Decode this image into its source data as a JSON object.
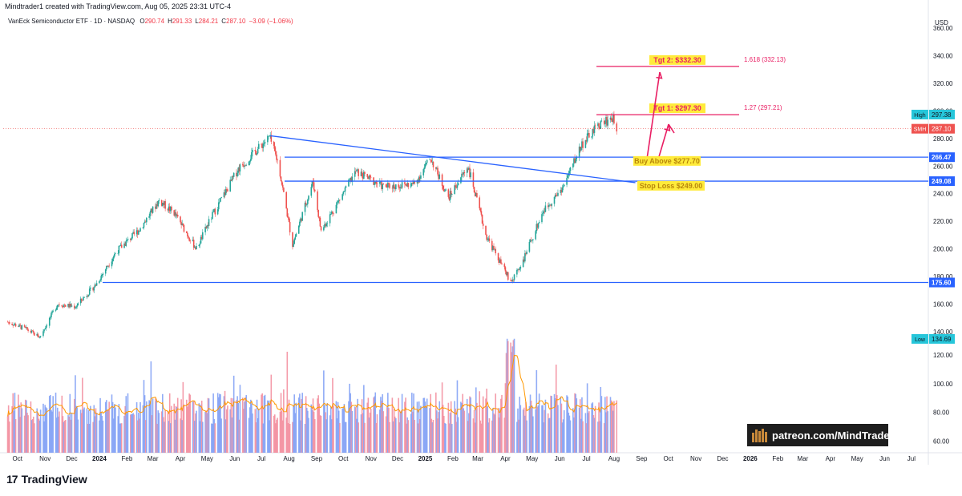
{
  "header": {
    "attribution": "Mindtrader1 created with TradingView.com, Aug 05, 2025 23:31 UTC-4",
    "instrument": "VanEck Semiconductor ETF · 1D · NASDAQ",
    "ohlc": [
      {
        "label": "O",
        "value": "290.74"
      },
      {
        "label": "H",
        "value": "291.33"
      },
      {
        "label": "L",
        "value": "284.21"
      },
      {
        "label": "C",
        "value": "287.10"
      },
      {
        "label": "",
        "value": "−3.09 (−1.06%)"
      }
    ]
  },
  "footer": {
    "brand": "TradingView",
    "logo": "17"
  },
  "watermark": {
    "text": "patreon.com/MindTrader",
    "icon": "books-icon"
  },
  "colors": {
    "up": "#26a69a",
    "down": "#ef5350",
    "line": "#2962ff",
    "target": "#e91e63",
    "label_bg": "#ffeb3b",
    "ma": "#ff9800"
  },
  "chart_data": {
    "type": "candlestick",
    "symbol": "SMH",
    "y_axis": {
      "unit_label": "USD",
      "ylim": [
        130,
        370
      ],
      "ticks": [
        140,
        160,
        180,
        200,
        220,
        240,
        260,
        280,
        300,
        320,
        340,
        360
      ]
    },
    "volume_axis": {
      "ticks": [
        60,
        80,
        100,
        120
      ]
    },
    "x_axis": {
      "ticks": [
        "Oct",
        "Nov",
        "Dec",
        "2024",
        "Feb",
        "Mar",
        "Apr",
        "May",
        "Jun",
        "Jul",
        "Aug",
        "Sep",
        "Oct",
        "Nov",
        "Dec",
        "2025",
        "Feb",
        "Mar",
        "Apr",
        "May",
        "Jun",
        "Jul",
        "Aug",
        "Sep",
        "Oct",
        "Nov",
        "Dec",
        "2026",
        "Feb",
        "Mar",
        "Apr",
        "May",
        "Jun",
        "Jul"
      ]
    },
    "price_path": [
      {
        "date": "2023-09-20",
        "close": 147
      },
      {
        "date": "2023-10-10",
        "close": 142
      },
      {
        "date": "2023-10-26",
        "close": 136
      },
      {
        "date": "2023-11-15",
        "close": 160
      },
      {
        "date": "2023-12-05",
        "close": 158
      },
      {
        "date": "2023-12-28",
        "close": 174
      },
      {
        "date": "2024-01-20",
        "close": 198
      },
      {
        "date": "2024-02-15",
        "close": 214
      },
      {
        "date": "2024-03-08",
        "close": 235
      },
      {
        "date": "2024-03-25",
        "close": 226
      },
      {
        "date": "2024-04-19",
        "close": 200
      },
      {
        "date": "2024-05-05",
        "close": 222
      },
      {
        "date": "2024-06-05",
        "close": 258
      },
      {
        "date": "2024-07-10",
        "close": 281
      },
      {
        "date": "2024-07-20",
        "close": 262
      },
      {
        "date": "2024-08-05",
        "close": 203
      },
      {
        "date": "2024-08-28",
        "close": 249
      },
      {
        "date": "2024-09-06",
        "close": 213
      },
      {
        "date": "2024-10-15",
        "close": 256
      },
      {
        "date": "2024-11-15",
        "close": 245
      },
      {
        "date": "2024-12-20",
        "close": 247
      },
      {
        "date": "2025-01-07",
        "close": 266
      },
      {
        "date": "2025-01-27",
        "close": 237
      },
      {
        "date": "2025-02-18",
        "close": 260
      },
      {
        "date": "2025-03-10",
        "close": 210
      },
      {
        "date": "2025-04-07",
        "close": 176
      },
      {
        "date": "2025-04-22",
        "close": 193
      },
      {
        "date": "2025-05-13",
        "close": 227
      },
      {
        "date": "2025-06-05",
        "close": 245
      },
      {
        "date": "2025-06-25",
        "close": 275
      },
      {
        "date": "2025-07-15",
        "close": 290
      },
      {
        "date": "2025-07-30",
        "close": 295
      },
      {
        "date": "2025-08-05",
        "close": 287.1
      }
    ],
    "horizontal_levels": [
      {
        "price": 266.47,
        "label": "266.47"
      },
      {
        "price": 249.08,
        "label": "249.08"
      },
      {
        "price": 175.6,
        "label": "175.60"
      }
    ],
    "trendline": {
      "from": {
        "date": "2024-07-11",
        "price": 282
      },
      "to": {
        "date": "2025-08-25",
        "price": 248
      }
    },
    "targets": [
      {
        "name": "Tgt 2: $332.30",
        "price": 332.3,
        "fib_label": "1.618 (332.13)"
      },
      {
        "name": "Tgt 1: $297.30",
        "price": 297.3,
        "fib_label": "1.27 (297.21)"
      }
    ],
    "annotations": [
      {
        "text": "Buy Above $277.70",
        "price": 262
      },
      {
        "text": "Stop Loss $249.00",
        "price": 244
      }
    ],
    "price_labels": [
      {
        "text": "High",
        "value": "297.38",
        "price": 297.38,
        "color": "#26c6da"
      },
      {
        "text": "SMH",
        "value": "287.10",
        "price": 287.1,
        "color": "#ef5350"
      },
      {
        "text": "Low",
        "value": "134.69",
        "price": 134.69,
        "color": "#26c6da"
      }
    ],
    "last_close": 287.1
  }
}
